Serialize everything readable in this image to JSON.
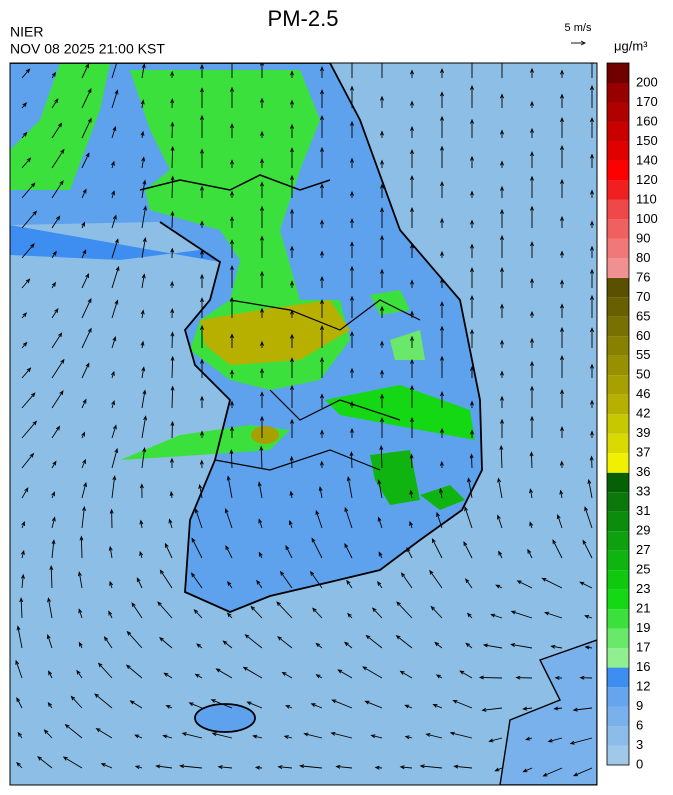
{
  "header": {
    "title": "PM-2.5",
    "source": "NIER",
    "datetime": "NOV 08 2025 21:00 KST",
    "wind_scale": "5 m/s",
    "unit": "μg/m³"
  },
  "colorbar": {
    "levels": [
      0,
      3,
      6,
      9,
      12,
      16,
      17,
      19,
      21,
      23,
      25,
      27,
      29,
      31,
      33,
      36,
      37,
      39,
      42,
      46,
      50,
      55,
      60,
      65,
      70,
      76,
      80,
      90,
      100,
      110,
      120,
      140,
      150,
      160,
      170,
      200
    ],
    "colors": [
      "#a0c8e8",
      "#8cbdea",
      "#79b1ec",
      "#66a5ee",
      "#3d8ef0",
      "#90f090",
      "#6ae86a",
      "#3ce03c",
      "#14d814",
      "#10c810",
      "#10b410",
      "#0ea00e",
      "#0c8c0c",
      "#0a780a",
      "#066006",
      "#f0f000",
      "#dada00",
      "#c8c800",
      "#b8b000",
      "#a8a000",
      "#989000",
      "#888000",
      "#787000",
      "#686000",
      "#5a5000",
      "#f09090",
      "#f07878",
      "#f06060",
      "#f04848",
      "#f02020",
      "#ff0000",
      "#e00000",
      "#c80000",
      "#b00000",
      "#980000",
      "#700000"
    ]
  }
}
